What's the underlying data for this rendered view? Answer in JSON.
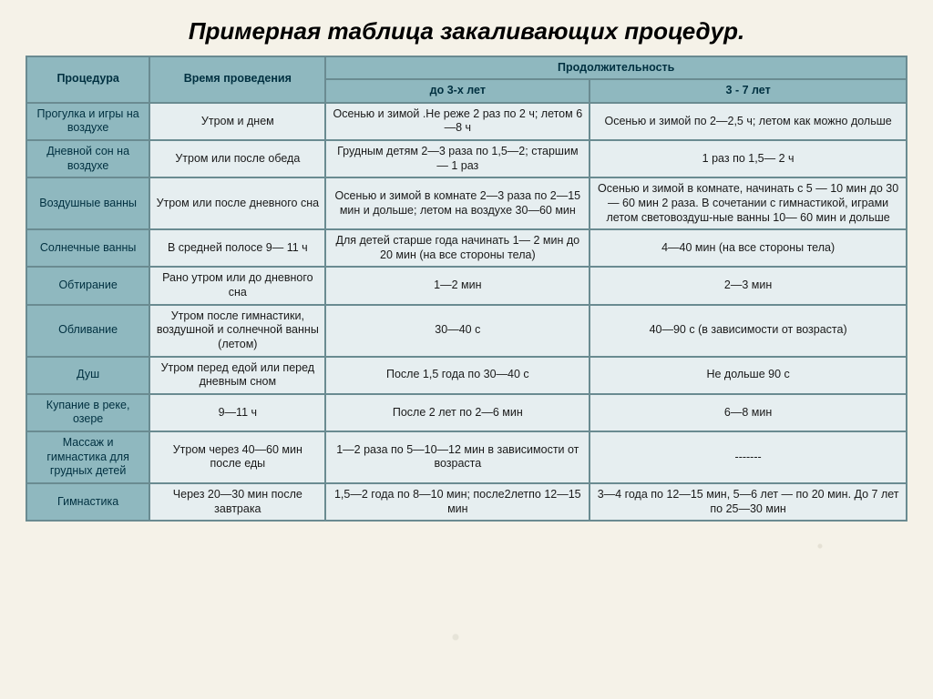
{
  "title": "Примерная таблица закаливающих процедур.",
  "colors": {
    "header_bg": "#8fb8bf",
    "body_bg": "#e6eef0",
    "border": "#6a8b91",
    "page_bg": "#f5f2e8"
  },
  "header": {
    "procedure": "Процедура",
    "time": "Время проведения",
    "duration_top": "Продолжительность",
    "duration_a": "до 3-х лет",
    "duration_b": "3 - 7 лет"
  },
  "rows": [
    {
      "name": "Прогулка и игры на воздухе",
      "time": "Утром и днем",
      "a": "Осенью и зимой .Не реже 2 раз по 2 ч; летом 6—8 ч",
      "b": "Осенью и зимой по 2—2,5 ч; летом как можно дольше"
    },
    {
      "name": "Дневной сон на воздухе",
      "time": "Утром или после обеда",
      "a": "Грудным детям 2—3 раза по 1,5—2; старшим— 1 раз",
      "b": "1 раз по 1,5— 2 ч"
    },
    {
      "name": "Воздушные ванны",
      "time": "Утром или после дневного сна",
      "a": "Осенью и зимой в комнате 2—3 раза по 2—15 мин и дольше; летом на воздухе 30—60 мин",
      "b": "Осенью и зимой в комнате, начинать с 5 — 10 мин до 30— 60 мин 2 раза. В сочетании с гимнастикой, играми летом световоздуш-ные ванны 10— 60 мин и дольше"
    },
    {
      "name": "Солнечные ванны",
      "time": "В средней полосе 9— 11 ч",
      "a": "Для детей старше года начинать 1— 2 мин до 20 мин (на все стороны тела)",
      "b": "4—40 мин (на все стороны тела)"
    },
    {
      "name": "Обтирание",
      "time": "Рано утром или до дневного сна",
      "a": "1—2 мин",
      "b": "2—3 мин"
    },
    {
      "name": "Обливание",
      "time": "Утром после гимнастики, воздушной и солнечной ванны (летом)",
      "a": "30—40 с",
      "b": "40—90 с (в зависимости от возраста)"
    },
    {
      "name": "Душ",
      "time": "Утром перед едой или перед дневным сном",
      "a": "После 1,5 года по 30—40 с",
      "b": "Не дольше 90 с"
    },
    {
      "name": "Купание в реке, озере",
      "time": "9—11 ч",
      "a": "После 2 лет по 2—6 мин",
      "b": "6—8 мин"
    },
    {
      "name": "Массаж и гимнастика для грудных детей",
      "time": "Утром через 40—60 мин после еды",
      "a": "1—2 раза по 5—10—12 мин в зависимости от возраста",
      "b": "-------"
    },
    {
      "name": "Гимнастика",
      "time": "Через 20—30 мин после завтрака",
      "a": "1,5—2 года по 8—10 мин; после2летпо 12—15 мин",
      "b": "3—4 года по 12—15 мин, 5—6 лет — по 20 мин. До 7 лет по 25—30 мин"
    }
  ]
}
